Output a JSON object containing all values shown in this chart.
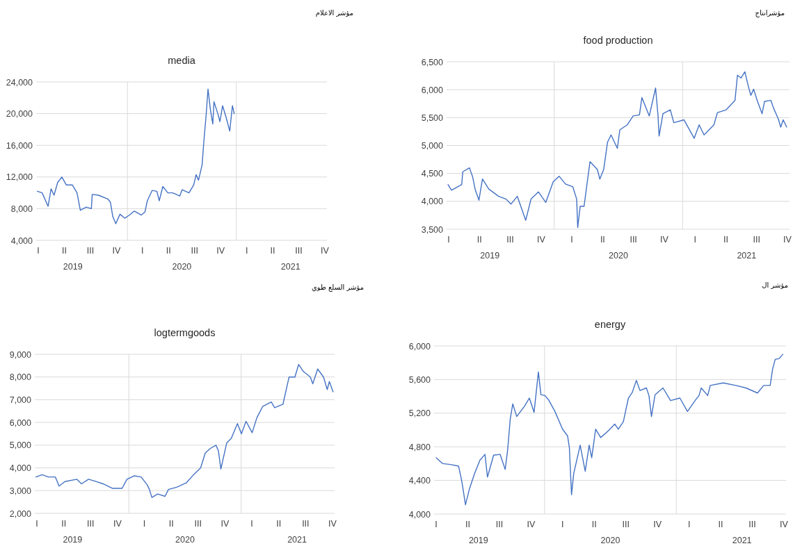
{
  "chart_data": [
    {
      "type": "line",
      "title": "media",
      "color": "#4472c4",
      "grid": "y",
      "xlim": [
        "2019-03-01",
        "2021-11-01"
      ],
      "ylim": [
        4000,
        24000
      ],
      "xticks": [
        {
          "value": "2019-07-02",
          "label": "2019"
        },
        {
          "value": "2020-07-02",
          "label": "2020"
        },
        {
          "value": "2021-07-02",
          "label": "2021"
        }
      ],
      "yticks": [
        {
          "value": 4000,
          "label": "4,000"
        },
        {
          "value": 8000,
          "label": "8,000"
        },
        {
          "value": 12000,
          "label": "12,000"
        },
        {
          "value": 16000,
          "label": "16,000"
        },
        {
          "value": 20000,
          "label": "20,000"
        },
        {
          "value": 24000,
          "label": "24,000"
        }
      ],
      "ref_lines": [
        {
          "axis": "x",
          "value": "2020-01-01",
          "color": "#d9d9d9"
        },
        {
          "axis": "x",
          "value": "2021-01-01",
          "color": "#d9d9d9"
        }
      ],
      "annotations": [
        "مؤشر الاعلام",
        "I",
        "II",
        "III",
        "IV",
        "I",
        "II",
        "III",
        "IV",
        "I",
        "II",
        "III",
        "IV"
      ],
      "x": [
        "2019-03-05",
        "2019-03-21",
        "2019-04-10",
        "2019-04-20",
        "2019-04-30",
        "2019-05-12",
        "2019-05-26",
        "2019-06-10",
        "2019-06-30",
        "2019-07-16",
        "2019-07-27",
        "2019-08-16",
        "2019-09-02",
        "2019-09-05",
        "2019-09-26",
        "2019-10-28",
        "2019-11-05",
        "2019-11-13",
        "2019-11-23",
        "2019-12-07",
        "2019-12-23",
        "2020-01-08",
        "2020-01-24",
        "2020-02-17",
        "2020-02-29",
        "2020-03-08",
        "2020-03-24",
        "2020-04-09",
        "2020-04-17",
        "2020-04-29",
        "2020-05-16",
        "2020-06-01",
        "2020-06-25",
        "2020-07-03",
        "2020-07-26",
        "2020-08-11",
        "2020-08-19",
        "2020-08-27",
        "2020-09-08",
        "2020-09-14",
        "2020-09-22",
        "2020-09-28",
        "2020-10-06",
        "2020-10-14",
        "2020-10-18",
        "2020-10-31",
        "2020-11-07",
        "2020-11-16",
        "2020-11-28",
        "2020-12-10",
        "2020-12-19",
        "2020-12-25"
      ],
      "values": [
        10200,
        10000,
        8300,
        10500,
        9700,
        11300,
        12000,
        11000,
        11000,
        10000,
        7800,
        8200,
        8000,
        9800,
        9700,
        9200,
        8800,
        7000,
        6100,
        7300,
        6800,
        7200,
        7700,
        7200,
        7600,
        9000,
        10300,
        10200,
        9000,
        10800,
        10000,
        10000,
        9600,
        10400,
        10000,
        11000,
        12300,
        11600,
        13500,
        16500,
        20000,
        23100,
        20500,
        18700,
        21500,
        20000,
        19000,
        21000,
        19500,
        17800,
        21000,
        20000
      ]
    },
    {
      "type": "line",
      "title": "food production",
      "color": "#4472c4",
      "grid": "y",
      "xlim": [
        "2019-03-01",
        "2021-11-01"
      ],
      "ylim": [
        3500,
        6500
      ],
      "xticks": [
        {
          "value": "2019-07-02",
          "label": "2019"
        },
        {
          "value": "2020-07-02",
          "label": "2020"
        },
        {
          "value": "2021-07-02",
          "label": "2021"
        }
      ],
      "yticks": [
        {
          "value": 3500,
          "label": "3,500"
        },
        {
          "value": 4000,
          "label": "4,000"
        },
        {
          "value": 4500,
          "label": "4,500"
        },
        {
          "value": 5000,
          "label": "5,000"
        },
        {
          "value": 5500,
          "label": "5,500"
        },
        {
          "value": 6000,
          "label": "6,000"
        },
        {
          "value": 6500,
          "label": "6,500"
        }
      ],
      "ref_lines": [
        {
          "axis": "x",
          "value": "2020-01-01",
          "color": "#d9d9d9"
        },
        {
          "axis": "x",
          "value": "2021-01-01",
          "color": "#d9d9d9"
        }
      ],
      "annotations": [
        "مؤشرانتاج",
        "I",
        "II",
        "III",
        "IV",
        "I",
        "II",
        "III",
        "IV",
        "I",
        "II",
        "III",
        "IV"
      ],
      "x": [
        "2019-03-05",
        "2019-03-15",
        "2019-04-13",
        "2019-04-16",
        "2019-05-05",
        "2019-05-14",
        "2019-05-21",
        "2019-06-01",
        "2019-06-11",
        "2019-06-29",
        "2019-07-27",
        "2019-08-17",
        "2019-08-31",
        "2019-09-18",
        "2019-10-12",
        "2019-10-27",
        "2019-11-17",
        "2019-12-08",
        "2019-12-29",
        "2020-01-15",
        "2020-02-02",
        "2020-02-23",
        "2020-03-05",
        "2020-03-08",
        "2020-03-15",
        "2020-03-26",
        "2020-04-12",
        "2020-05-03",
        "2020-05-10",
        "2020-05-21",
        "2020-06-01",
        "2020-06-11",
        "2020-06-29",
        "2020-07-06",
        "2020-07-27",
        "2020-08-13",
        "2020-08-31",
        "2020-09-07",
        "2020-09-28",
        "2020-10-16",
        "2020-10-23",
        "2020-10-26",
        "2020-11-06",
        "2020-11-27",
        "2020-12-07",
        "2021-01-05",
        "2021-02-03",
        "2021-02-17",
        "2021-03-03",
        "2021-03-31",
        "2021-04-10",
        "2021-05-05",
        "2021-05-30",
        "2021-06-06",
        "2021-06-16",
        "2021-06-27",
        "2021-07-07",
        "2021-07-14",
        "2021-07-22",
        "2021-08-01",
        "2021-08-15",
        "2021-08-22",
        "2021-09-09",
        "2021-09-16",
        "2021-09-30",
        "2021-10-07",
        "2021-10-14",
        "2021-10-24"
      ],
      "values": [
        4300,
        4200,
        4300,
        4530,
        4600,
        4440,
        4220,
        4020,
        4400,
        4220,
        4090,
        4040,
        3950,
        4090,
        3660,
        4040,
        4170,
        3980,
        4350,
        4450,
        4310,
        4260,
        4040,
        3530,
        3910,
        3910,
        4710,
        4570,
        4400,
        4570,
        5060,
        5190,
        4950,
        5280,
        5370,
        5530,
        5550,
        5860,
        5530,
        6030,
        5530,
        5170,
        5570,
        5640,
        5410,
        5460,
        5130,
        5370,
        5190,
        5370,
        5590,
        5640,
        5810,
        6260,
        6210,
        6320,
        6060,
        5900,
        6010,
        5810,
        5570,
        5790,
        5810,
        5680,
        5480,
        5330,
        5460,
        5330
      ]
    },
    {
      "type": "line",
      "title": "logtermgoods",
      "color": "#4472c4",
      "grid": "y",
      "xlim": [
        "2019-03-01",
        "2021-11-01"
      ],
      "ylim": [
        2000,
        9000
      ],
      "xticks": [
        {
          "value": "2019-07-02",
          "label": "2019"
        },
        {
          "value": "2020-07-02",
          "label": "2020"
        },
        {
          "value": "2021-07-02",
          "label": "2021"
        }
      ],
      "yticks": [
        {
          "value": 2000,
          "label": "2,000"
        },
        {
          "value": 3000,
          "label": "3,000"
        },
        {
          "value": 4000,
          "label": "4,000"
        },
        {
          "value": 5000,
          "label": "5,000"
        },
        {
          "value": 6000,
          "label": "6,000"
        },
        {
          "value": 7000,
          "label": "7,000"
        },
        {
          "value": 8000,
          "label": "8,000"
        },
        {
          "value": 9000,
          "label": "9,000"
        }
      ],
      "ref_lines": [
        {
          "axis": "x",
          "value": "2020-01-01",
          "color": "#d9d9d9"
        },
        {
          "axis": "x",
          "value": "2021-01-01",
          "color": "#d9d9d9"
        }
      ],
      "annotations": [
        "مؤشر السلع طوي",
        "I",
        "II",
        "III",
        "IV",
        "I",
        "II",
        "III",
        "IV",
        "I",
        "II",
        "III",
        "IV"
      ],
      "x": [
        "2019-03-05",
        "2019-03-25",
        "2019-04-14",
        "2019-05-07",
        "2019-05-19",
        "2019-06-07",
        "2019-07-16",
        "2019-07-31",
        "2019-08-23",
        "2019-09-16",
        "2019-10-09",
        "2019-11-09",
        "2019-12-10",
        "2019-12-26",
        "2020-01-18",
        "2020-02-10",
        "2020-03-01",
        "2020-03-08",
        "2020-03-16",
        "2020-04-04",
        "2020-04-28",
        "2020-05-09",
        "2020-06-05",
        "2020-07-07",
        "2020-07-30",
        "2020-08-22",
        "2020-09-06",
        "2020-09-22",
        "2020-10-11",
        "2020-10-19",
        "2020-10-23",
        "2020-10-27",
        "2020-11-15",
        "2020-11-30",
        "2020-12-20",
        "2021-01-02",
        "2021-01-17",
        "2021-02-06",
        "2021-02-21",
        "2021-03-12",
        "2021-04-09",
        "2021-04-20",
        "2021-05-17",
        "2021-06-06",
        "2021-06-25",
        "2021-07-07",
        "2021-07-22",
        "2021-08-14",
        "2021-08-22",
        "2021-09-07",
        "2021-09-26",
        "2021-10-08",
        "2021-10-15",
        "2021-10-27"
      ],
      "values": [
        3600,
        3700,
        3600,
        3600,
        3200,
        3400,
        3500,
        3300,
        3500,
        3400,
        3300,
        3100,
        3100,
        3500,
        3650,
        3600,
        3250,
        3050,
        2700,
        2850,
        2750,
        3050,
        3150,
        3350,
        3700,
        4000,
        4650,
        4850,
        5000,
        4750,
        4350,
        3950,
        5100,
        5300,
        5950,
        5500,
        6050,
        5550,
        6200,
        6700,
        6900,
        6650,
        6800,
        8000,
        8000,
        8550,
        8250,
        8000,
        7700,
        8350,
        8000,
        7450,
        7800,
        7350
      ]
    },
    {
      "type": "line",
      "title": "energy",
      "color": "#4472c4",
      "grid": "y",
      "xlim": [
        "2019-03-01",
        "2021-11-01"
      ],
      "ylim": [
        4000,
        6000
      ],
      "xticks": [
        {
          "value": "2019-07-02",
          "label": "2019"
        },
        {
          "value": "2020-07-02",
          "label": "2020"
        },
        {
          "value": "2021-07-02",
          "label": "2021"
        }
      ],
      "yticks": [
        {
          "value": 4000,
          "label": "4,000"
        },
        {
          "value": 4400,
          "label": "4,400"
        },
        {
          "value": 4800,
          "label": "4,800"
        },
        {
          "value": 5200,
          "label": "5,200"
        },
        {
          "value": 5600,
          "label": "5,600"
        },
        {
          "value": 6000,
          "label": "6,000"
        }
      ],
      "ref_lines": [
        {
          "axis": "x",
          "value": "2020-01-01",
          "color": "#d9d9d9"
        },
        {
          "axis": "x",
          "value": "2021-01-01",
          "color": "#d9d9d9"
        }
      ],
      "annotations": [
        "مؤشر ال",
        "I",
        "II",
        "III",
        "IV",
        "I",
        "II",
        "III",
        "IV",
        "I",
        "II",
        "III",
        "IV"
      ],
      "x": [
        "2019-03-07",
        "2019-03-25",
        "2019-04-15",
        "2019-05-08",
        "2019-05-14",
        "2019-05-18",
        "2019-05-27",
        "2019-06-07",
        "2019-06-21",
        "2019-07-06",
        "2019-07-20",
        "2019-07-27",
        "2019-08-13",
        "2019-08-31",
        "2019-09-14",
        "2019-09-21",
        "2019-09-28",
        "2019-10-05",
        "2019-10-16",
        "2019-11-06",
        "2019-11-20",
        "2019-12-03",
        "2019-12-08",
        "2019-12-15",
        "2019-12-22",
        "2020-01-02",
        "2020-01-12",
        "2020-01-30",
        "2020-02-20",
        "2020-03-05",
        "2020-03-10",
        "2020-03-16",
        "2020-03-22",
        "2020-04-09",
        "2020-04-23",
        "2020-05-04",
        "2020-05-11",
        "2020-05-22",
        "2020-06-05",
        "2020-06-26",
        "2020-07-14",
        "2020-07-24",
        "2020-08-07",
        "2020-08-21",
        "2020-09-01",
        "2020-09-12",
        "2020-09-22",
        "2020-10-10",
        "2020-10-17",
        "2020-10-24",
        "2020-11-03",
        "2020-11-25",
        "2020-12-16",
        "2021-01-11",
        "2021-02-01",
        "2021-02-22",
        "2021-03-05",
        "2021-03-11",
        "2021-03-29",
        "2021-04-05",
        "2021-05-11",
        "2021-06-15",
        "2021-07-13",
        "2021-08-14",
        "2021-08-31",
        "2021-09-18",
        "2021-09-25",
        "2021-10-02",
        "2021-10-13",
        "2021-10-23"
      ],
      "values": [
        4670,
        4600,
        4590,
        4570,
        4450,
        4360,
        4110,
        4300,
        4480,
        4640,
        4710,
        4440,
        4700,
        4710,
        4530,
        4770,
        5130,
        5310,
        5160,
        5280,
        5380,
        5210,
        5410,
        5690,
        5420,
        5410,
        5360,
        5220,
        5010,
        4930,
        4790,
        4230,
        4480,
        4820,
        4510,
        4820,
        4670,
        5010,
        4910,
        4990,
        5070,
        5010,
        5100,
        5380,
        5450,
        5590,
        5470,
        5500,
        5410,
        5160,
        5420,
        5500,
        5350,
        5380,
        5220,
        5350,
        5410,
        5500,
        5410,
        5530,
        5560,
        5530,
        5500,
        5440,
        5530,
        5530,
        5730,
        5840,
        5850,
        5900
      ]
    }
  ]
}
